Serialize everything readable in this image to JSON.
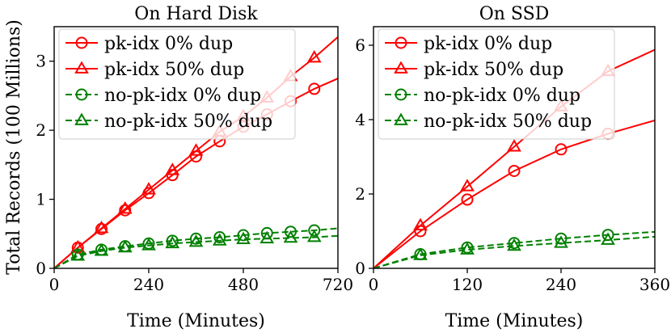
{
  "figure": {
    "ylabel": "Total Records (100 Millions)"
  },
  "chart_data": [
    {
      "type": "line",
      "title": "On Hard Disk",
      "xlabel": "Time (Minutes)",
      "ylabel": "Total Records (100 Millions)",
      "xlim": [
        0,
        720
      ],
      "ylim": [
        0,
        3.5
      ],
      "xticks": [
        0,
        240,
        480,
        720
      ],
      "yticks": [
        0,
        1,
        2,
        3
      ],
      "legend_position": "top-left",
      "series": [
        {
          "name": "pk-idx 0% dup",
          "color": "#ff0000",
          "dash": "solid",
          "marker": "circle",
          "x": [
            0,
            60,
            120,
            180,
            240,
            300,
            360,
            420,
            480,
            540,
            600,
            660,
            720
          ],
          "y": [
            0,
            0.3,
            0.57,
            0.84,
            1.09,
            1.35,
            1.62,
            1.84,
            2.05,
            2.23,
            2.42,
            2.6,
            2.75
          ],
          "marker_x": [
            60,
            120,
            180,
            240,
            300,
            360,
            420,
            480,
            540,
            600,
            660
          ]
        },
        {
          "name": "pk-idx 50% dup",
          "color": "#ff0000",
          "dash": "solid",
          "marker": "triangle",
          "x": [
            0,
            60,
            120,
            180,
            240,
            300,
            360,
            420,
            480,
            540,
            600,
            660,
            720
          ],
          "y": [
            0,
            0.3,
            0.58,
            0.86,
            1.14,
            1.42,
            1.7,
            1.98,
            2.2,
            2.47,
            2.78,
            3.05,
            3.35
          ],
          "marker_x": [
            60,
            120,
            180,
            240,
            300,
            360,
            420,
            480,
            540,
            600,
            660
          ]
        },
        {
          "name": "no-pk-idx 0% dup",
          "color": "#008000",
          "dash": "dashed",
          "marker": "circle",
          "x": [
            0,
            60,
            120,
            180,
            240,
            300,
            360,
            420,
            480,
            540,
            600,
            660,
            720
          ],
          "y": [
            0,
            0.2,
            0.27,
            0.32,
            0.36,
            0.4,
            0.43,
            0.45,
            0.48,
            0.51,
            0.53,
            0.55,
            0.58
          ],
          "marker_x": [
            60,
            120,
            180,
            240,
            300,
            360,
            420,
            480,
            540,
            600,
            660
          ]
        },
        {
          "name": "no-pk-idx 50% dup",
          "color": "#008000",
          "dash": "dashed",
          "marker": "triangle",
          "x": [
            0,
            60,
            120,
            180,
            240,
            300,
            360,
            420,
            480,
            540,
            600,
            660,
            720
          ],
          "y": [
            0,
            0.18,
            0.25,
            0.3,
            0.33,
            0.36,
            0.38,
            0.4,
            0.42,
            0.43,
            0.44,
            0.45,
            0.47
          ],
          "marker_x": [
            60,
            120,
            180,
            240,
            300,
            360,
            420,
            480,
            540,
            600,
            660
          ]
        }
      ]
    },
    {
      "type": "line",
      "title": "On SSD",
      "xlabel": "Time (Minutes)",
      "ylabel": "",
      "xlim": [
        0,
        360
      ],
      "ylim": [
        0,
        6.5
      ],
      "xticks": [
        0,
        120,
        240,
        360
      ],
      "yticks": [
        0,
        2,
        4,
        6
      ],
      "legend_position": "top-left",
      "series": [
        {
          "name": "pk-idx 0% dup",
          "color": "#ff0000",
          "dash": "solid",
          "marker": "circle",
          "x": [
            0,
            60,
            120,
            180,
            240,
            300,
            360
          ],
          "y": [
            0,
            1.0,
            1.85,
            2.62,
            3.2,
            3.62,
            3.98
          ],
          "marker_x": [
            60,
            120,
            180,
            240,
            300
          ]
        },
        {
          "name": "pk-idx 50% dup",
          "color": "#ff0000",
          "dash": "solid",
          "marker": "triangle",
          "x": [
            0,
            60,
            120,
            180,
            240,
            300,
            360
          ],
          "y": [
            0,
            1.15,
            2.2,
            3.27,
            4.35,
            5.3,
            5.88
          ],
          "marker_x": [
            60,
            120,
            180,
            240,
            300
          ]
        },
        {
          "name": "no-pk-idx 0% dup",
          "color": "#008000",
          "dash": "dashed",
          "marker": "circle",
          "x": [
            0,
            60,
            120,
            180,
            240,
            300,
            360
          ],
          "y": [
            0,
            0.38,
            0.56,
            0.68,
            0.8,
            0.9,
            0.98
          ],
          "marker_x": [
            60,
            120,
            180,
            240,
            300
          ]
        },
        {
          "name": "no-pk-idx 50% dup",
          "color": "#008000",
          "dash": "dashed",
          "marker": "triangle",
          "x": [
            0,
            60,
            120,
            180,
            240,
            300,
            360
          ],
          "y": [
            0,
            0.35,
            0.5,
            0.6,
            0.68,
            0.76,
            0.85
          ],
          "marker_x": [
            60,
            120,
            180,
            240,
            300
          ]
        }
      ]
    }
  ]
}
